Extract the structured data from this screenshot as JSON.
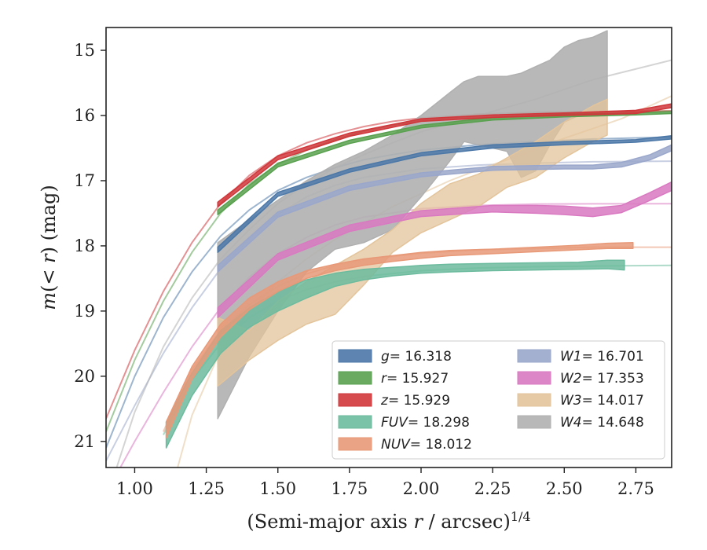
{
  "chart_data": {
    "type": "area",
    "xlabel": "(Semi-major axis r / arcsec)^{1/4}",
    "ylabel": "m(< r) (mag)",
    "xlim": [
      0.9,
      2.875
    ],
    "ylim": [
      21.4,
      14.65
    ],
    "y_inverted": true,
    "x_ticks": [
      "1.00",
      "1.25",
      "1.50",
      "1.75",
      "2.00",
      "2.25",
      "2.50",
      "2.75"
    ],
    "y_ticks": [
      "15",
      "16",
      "17",
      "18",
      "19",
      "20",
      "21"
    ],
    "x_tick_values": [
      1.0,
      1.25,
      1.5,
      1.75,
      2.0,
      2.25,
      2.5,
      2.75
    ],
    "y_tick_values": [
      15,
      16,
      17,
      18,
      19,
      20,
      21
    ],
    "grid": false,
    "legend_position": "lower-right",
    "legend_columns": 2,
    "series": [
      {
        "name": "g = 16.318",
        "legend_math": "g",
        "legend_value": "= 16.318",
        "color": "#4c78a8",
        "model_asymptote": 16.318,
        "model_x": [
          0.9,
          1.0,
          1.1,
          1.2,
          1.3,
          1.4,
          1.5,
          1.6,
          1.7,
          1.8,
          1.9,
          2.0,
          2.2,
          2.4,
          2.6,
          2.875
        ],
        "model_y": [
          21.1,
          20.0,
          19.1,
          18.4,
          17.85,
          17.45,
          17.15,
          16.95,
          16.8,
          16.68,
          16.6,
          16.53,
          16.45,
          16.4,
          16.36,
          16.33
        ],
        "profile_x": [
          1.29,
          1.5,
          1.75,
          2.0,
          2.25,
          2.5,
          2.75,
          2.875
        ],
        "profile_upper": [
          18.02,
          17.18,
          16.82,
          16.57,
          16.45,
          16.4,
          16.37,
          16.31
        ],
        "profile_lower": [
          18.1,
          17.24,
          16.87,
          16.62,
          16.5,
          16.45,
          16.41,
          16.36
        ]
      },
      {
        "name": "r = 15.927",
        "legend_math": "r",
        "legend_value": "= 15.927",
        "color": "#59a14f",
        "model_asymptote": 15.927,
        "model_x": [
          0.9,
          1.0,
          1.1,
          1.2,
          1.3,
          1.4,
          1.5,
          1.6,
          1.7,
          1.8,
          1.9,
          2.0,
          2.2,
          2.4,
          2.6,
          2.875
        ],
        "model_y": [
          20.85,
          19.75,
          18.85,
          18.1,
          17.5,
          17.05,
          16.75,
          16.53,
          16.37,
          16.24,
          16.15,
          16.08,
          16.0,
          15.96,
          15.94,
          15.93
        ],
        "profile_x": [
          1.29,
          1.5,
          1.75,
          2.0,
          2.25,
          2.5,
          2.75,
          2.875
        ],
        "profile_upper": [
          17.45,
          16.73,
          16.38,
          16.15,
          16.03,
          15.98,
          15.96,
          15.94
        ],
        "profile_lower": [
          17.52,
          16.79,
          16.43,
          16.19,
          16.07,
          16.02,
          15.99,
          15.97
        ]
      },
      {
        "name": "z = 15.929",
        "legend_math": "z",
        "legend_value": "= 15.929",
        "color": "#d0373b",
        "model_asymptote": 15.929,
        "model_x": [
          0.9,
          1.0,
          1.1,
          1.2,
          1.3,
          1.4,
          1.5,
          1.6,
          1.7,
          1.8,
          1.9,
          2.0,
          2.2,
          2.4,
          2.6,
          2.875
        ],
        "model_y": [
          20.65,
          19.6,
          18.7,
          17.95,
          17.35,
          16.92,
          16.62,
          16.42,
          16.28,
          16.17,
          16.09,
          16.04,
          15.98,
          15.95,
          15.94,
          15.93
        ],
        "profile_x": [
          1.29,
          1.5,
          1.75,
          2.0,
          2.25,
          2.5,
          2.75,
          2.875
        ],
        "profile_upper": [
          17.33,
          16.62,
          16.27,
          16.05,
          15.99,
          15.96,
          15.92,
          15.82
        ],
        "profile_lower": [
          17.4,
          16.68,
          16.32,
          16.09,
          16.03,
          16.0,
          15.97,
          15.88
        ]
      },
      {
        "name": "FUV = 18.298",
        "legend_math": "FUV",
        "legend_value": "= 18.298",
        "color": "#6cbb9e",
        "model_asymptote": 18.298,
        "model_x": [
          1.1,
          1.2,
          1.3,
          1.4,
          1.5,
          1.6,
          1.7,
          1.8,
          2.0,
          2.2,
          2.4,
          2.6,
          2.875
        ],
        "model_y": [
          20.9,
          20.05,
          19.5,
          19.1,
          18.85,
          18.67,
          18.55,
          18.47,
          18.38,
          18.34,
          18.32,
          18.31,
          18.3
        ],
        "profile_x": [
          1.11,
          1.2,
          1.3,
          1.4,
          1.5,
          1.6,
          1.7,
          1.8,
          1.9,
          2.0,
          2.1,
          2.25,
          2.4,
          2.55,
          2.65,
          2.71
        ],
        "profile_upper": [
          20.7,
          19.95,
          19.3,
          18.95,
          18.7,
          18.52,
          18.42,
          18.36,
          18.33,
          18.3,
          18.28,
          18.27,
          18.26,
          18.25,
          18.22,
          18.22
        ],
        "profile_lower": [
          21.1,
          20.3,
          19.65,
          19.25,
          19.0,
          18.8,
          18.62,
          18.52,
          18.46,
          18.42,
          18.4,
          18.38,
          18.37,
          18.36,
          18.35,
          18.37
        ]
      },
      {
        "name": "NUV = 18.012",
        "legend_math": "NUV",
        "legend_value": "= 18.012",
        "color": "#e89978",
        "model_asymptote": 18.012,
        "model_x": [
          1.1,
          1.2,
          1.3,
          1.4,
          1.5,
          1.6,
          1.7,
          1.8,
          2.0,
          2.2,
          2.4,
          2.6,
          2.875
        ],
        "model_y": [
          20.85,
          19.9,
          19.3,
          18.9,
          18.62,
          18.43,
          18.3,
          18.21,
          18.11,
          18.06,
          18.04,
          18.02,
          18.02
        ],
        "profile_x": [
          1.11,
          1.2,
          1.3,
          1.4,
          1.5,
          1.6,
          1.7,
          1.8,
          1.9,
          2.0,
          2.1,
          2.25,
          2.4,
          2.55,
          2.65,
          2.74
        ],
        "profile_upper": [
          20.7,
          19.85,
          19.2,
          18.8,
          18.55,
          18.38,
          18.28,
          18.2,
          18.15,
          18.1,
          18.07,
          18.05,
          18.02,
          17.99,
          17.96,
          17.95
        ],
        "profile_lower": [
          20.95,
          20.05,
          19.4,
          18.98,
          18.7,
          18.5,
          18.38,
          18.3,
          18.24,
          18.19,
          18.15,
          18.12,
          18.09,
          18.06,
          18.04,
          18.04
        ]
      },
      {
        "name": "W1 = 16.701",
        "legend_math": "W1",
        "legend_value": "= 16.701",
        "color": "#9aa7cb",
        "model_asymptote": 16.701,
        "model_x": [
          0.9,
          1.0,
          1.1,
          1.2,
          1.3,
          1.4,
          1.5,
          1.6,
          1.7,
          1.8,
          2.0,
          2.2,
          2.4,
          2.6,
          2.875
        ],
        "model_y": [
          21.3,
          20.45,
          19.65,
          18.95,
          18.35,
          17.88,
          17.52,
          17.25,
          17.07,
          16.95,
          16.82,
          16.76,
          16.73,
          16.71,
          16.7
        ],
        "profile_x": [
          1.29,
          1.5,
          1.75,
          2.0,
          2.25,
          2.5,
          2.6,
          2.7,
          2.8,
          2.875
        ],
        "profile_upper": [
          18.3,
          17.48,
          17.08,
          16.88,
          16.78,
          16.76,
          16.76,
          16.72,
          16.6,
          16.45
        ],
        "profile_lower": [
          18.4,
          17.56,
          17.15,
          16.94,
          16.84,
          16.82,
          16.82,
          16.79,
          16.68,
          16.54
        ]
      },
      {
        "name": "W2 = 17.353",
        "legend_math": "W2",
        "legend_value": "= 17.353",
        "color": "#d979c1",
        "model_asymptote": 17.353,
        "model_x": [
          0.95,
          1.0,
          1.1,
          1.2,
          1.3,
          1.4,
          1.5,
          1.6,
          1.7,
          1.8,
          2.0,
          2.2,
          2.4,
          2.6,
          2.875
        ],
        "model_y": [
          21.4,
          21.0,
          20.25,
          19.55,
          18.95,
          18.48,
          18.12,
          17.87,
          17.68,
          17.56,
          17.43,
          17.38,
          17.36,
          17.355,
          17.353
        ],
        "profile_x": [
          1.29,
          1.5,
          1.75,
          2.0,
          2.25,
          2.4,
          2.5,
          2.6,
          2.7,
          2.8,
          2.875
        ],
        "profile_upper": [
          18.95,
          18.12,
          17.68,
          17.46,
          17.38,
          17.38,
          17.39,
          17.42,
          17.38,
          17.18,
          17.02
        ],
        "profile_lower": [
          19.1,
          18.22,
          17.78,
          17.55,
          17.48,
          17.5,
          17.52,
          17.55,
          17.49,
          17.3,
          17.15
        ]
      },
      {
        "name": "W3 = 14.017",
        "legend_math": "W3",
        "legend_value": "= 14.017",
        "color": "#e3c49b",
        "model_asymptote": 14.017,
        "model_x": [
          1.15,
          1.2,
          1.3,
          1.4,
          1.5,
          1.6,
          1.7,
          1.8,
          1.9,
          2.0,
          2.1,
          2.2,
          2.3,
          2.4,
          2.5,
          2.6,
          2.7,
          2.8,
          2.875
        ],
        "model_y": [
          21.4,
          20.6,
          19.6,
          19.0,
          18.55,
          18.2,
          17.9,
          17.65,
          17.4,
          17.2,
          17.0,
          16.83,
          16.68,
          16.52,
          16.35,
          16.2,
          16.05,
          15.85,
          15.7
        ],
        "profile_x": [
          1.29,
          1.4,
          1.5,
          1.6,
          1.7,
          1.8,
          1.9,
          2.0,
          2.1,
          2.2,
          2.3,
          2.4,
          2.5,
          2.6,
          2.65
        ],
        "profile_upper": [
          19.1,
          19.3,
          18.85,
          18.55,
          18.3,
          18.05,
          17.75,
          17.35,
          17.05,
          16.9,
          16.65,
          16.4,
          16.1,
          15.85,
          15.75
        ],
        "profile_lower": [
          20.15,
          19.75,
          19.45,
          19.2,
          19.05,
          18.6,
          18.1,
          17.8,
          17.6,
          17.4,
          17.1,
          16.95,
          16.65,
          16.4,
          16.3
        ]
      },
      {
        "name": "W4 = 14.648",
        "legend_math": "W4",
        "legend_value": "= 14.648",
        "color": "#b0b0b0",
        "model_asymptote": 14.648,
        "model_x": [
          0.9,
          1.0,
          1.1,
          1.2,
          1.3,
          1.4,
          1.5,
          1.6,
          1.7,
          1.8,
          1.9,
          2.0,
          2.2,
          2.4,
          2.6,
          2.875
        ],
        "model_y": [
          21.9,
          20.55,
          19.55,
          18.8,
          18.2,
          17.75,
          17.35,
          17.05,
          16.8,
          16.6,
          16.42,
          16.25,
          16.0,
          15.75,
          15.45,
          15.15
        ],
        "profile_x": [
          1.29,
          1.4,
          1.5,
          1.6,
          1.7,
          1.8,
          1.9,
          2.0,
          2.1,
          2.15,
          2.2,
          2.3,
          2.35,
          2.4,
          2.45,
          2.5,
          2.55,
          2.6,
          2.65
        ],
        "profile_upper": [
          17.95,
          17.6,
          17.3,
          17.0,
          16.75,
          16.55,
          16.3,
          16.0,
          15.65,
          15.48,
          15.4,
          15.4,
          15.35,
          15.25,
          15.15,
          14.95,
          14.85,
          14.8,
          14.7
        ],
        "profile_lower": [
          20.65,
          19.7,
          19.0,
          18.4,
          18.05,
          17.95,
          17.75,
          17.25,
          16.7,
          16.4,
          16.45,
          16.55,
          16.95,
          16.85,
          16.45,
          16.1,
          16.0,
          16.0,
          16.0
        ]
      }
    ]
  }
}
